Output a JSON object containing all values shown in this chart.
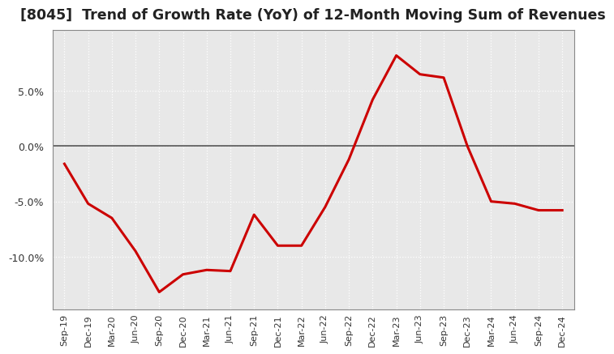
{
  "title": "[8045]  Trend of Growth Rate (YoY) of 12-Month Moving Sum of Revenues",
  "title_fontsize": 12.5,
  "line_color": "#CC0000",
  "line_width": 2.2,
  "background_color": "#FFFFFF",
  "plot_bg_color": "#E8E8E8",
  "grid_color": "#FFFFFF",
  "ylim": [
    -0.148,
    0.105
  ],
  "yticks": [
    -0.1,
    -0.05,
    0.0,
    0.05
  ],
  "x_labels": [
    "Sep-19",
    "Dec-19",
    "Mar-20",
    "Jun-20",
    "Sep-20",
    "Dec-20",
    "Mar-21",
    "Jun-21",
    "Sep-21",
    "Dec-21",
    "Mar-22",
    "Jun-22",
    "Sep-22",
    "Dec-22",
    "Mar-23",
    "Jun-23",
    "Sep-23",
    "Dec-23",
    "Mar-24",
    "Jun-24",
    "Sep-24",
    "Dec-24"
  ],
  "y_values": [
    -0.016,
    -0.052,
    -0.065,
    -0.095,
    -0.132,
    -0.116,
    -0.112,
    -0.113,
    -0.062,
    -0.09,
    -0.09,
    -0.055,
    -0.012,
    0.042,
    0.082,
    0.065,
    0.062,
    0.0,
    -0.05,
    -0.052,
    -0.058,
    -0.058
  ]
}
